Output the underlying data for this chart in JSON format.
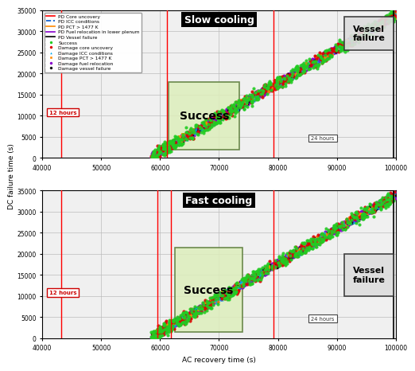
{
  "xlim": [
    40000,
    100000
  ],
  "ylim": [
    0,
    35000
  ],
  "xlabel": "AC recovery time (s)",
  "ylabel": "DC failure time (s)",
  "title_top": "Slow cooling",
  "title_bot": "Fast cooling",
  "xticks": [
    40000,
    50000,
    60000,
    70000,
    80000,
    90000,
    100000
  ],
  "yticks": [
    0,
    5000,
    10000,
    15000,
    20000,
    25000,
    30000,
    35000
  ],
  "background_color": "#f0f0f0",
  "grid_color": "#bbbbbb",
  "seed": 7
}
